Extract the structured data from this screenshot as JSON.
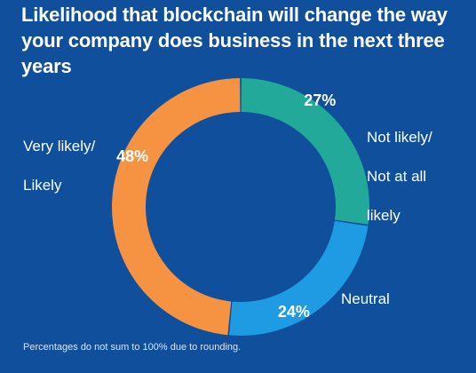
{
  "chart_data": {
    "type": "pie",
    "variant": "donut",
    "title": "Likelihood that blockchain will change the way your company does business in the next three years",
    "categories": [
      "Not likely/ Not at all likely",
      "Neutral",
      "Very likely/ Likely"
    ],
    "values": [
      27,
      24,
      48
    ],
    "value_labels": [
      "27%",
      "24%",
      "48%"
    ],
    "colors": [
      "#22a99a",
      "#1e9be3",
      "#f59342"
    ],
    "footnote": "Percentages do not sum to 100% due to rounding."
  },
  "labels": {
    "not_likely_line1": "Not likely/",
    "not_likely_line2": "Not at all",
    "not_likely_line3": "likely",
    "neutral": "Neutral",
    "very_likely_line1": "Very likely/",
    "very_likely_line2": "Likely"
  },
  "background": "#0f4f9b"
}
